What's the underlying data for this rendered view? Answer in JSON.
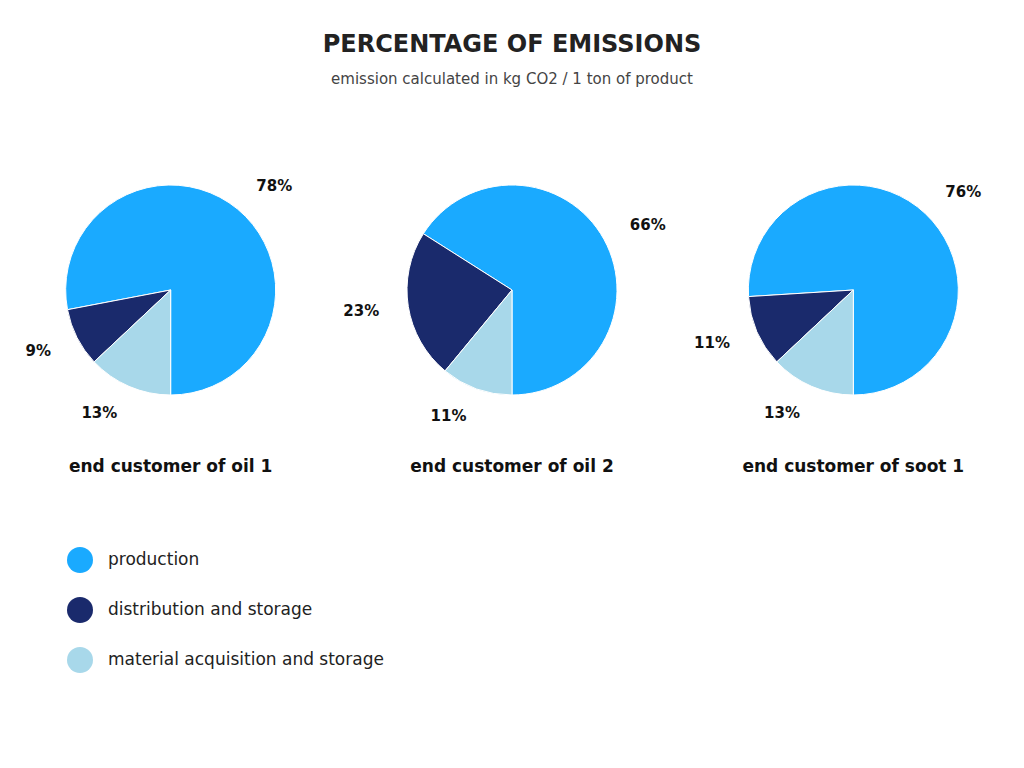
{
  "chart_data": {
    "type": "pie",
    "title": "PERCENTAGE OF EMISSIONS",
    "subtitle": "emission calculated in kg CO2 / 1 ton of product",
    "categories": [
      "production",
      "distribution and storage",
      "material acquisition and storage"
    ],
    "colors": [
      "#1AAAFF",
      "#1A2A6C",
      "#A8D8EA"
    ],
    "series": [
      {
        "name": "end customer of oil 1",
        "values": [
          78,
          9,
          13
        ],
        "value_labels": [
          "78%",
          "9%",
          "13%"
        ]
      },
      {
        "name": "end customer of oil 2",
        "values": [
          66,
          23,
          11
        ],
        "value_labels": [
          "66%",
          "23%",
          "11%"
        ]
      },
      {
        "name": "end customer of soot 1",
        "values": [
          76,
          11,
          13
        ],
        "value_labels": [
          "76%",
          "11%",
          "13%"
        ]
      }
    ],
    "data_labels": true,
    "legend": "bottom-left"
  }
}
